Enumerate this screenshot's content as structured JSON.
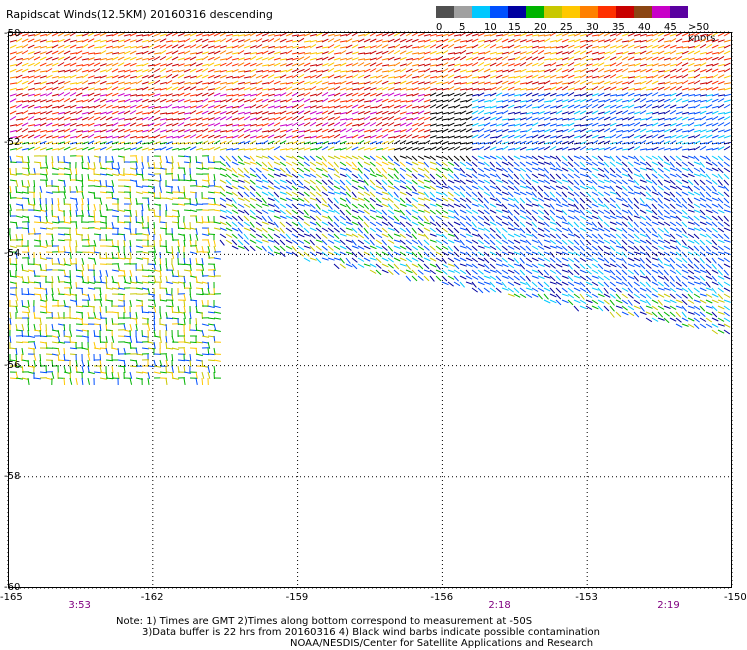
{
  "title": "Rapidscat Winds(12.5KM) 20160316 descending",
  "legend": {
    "labels": [
      "0",
      "5",
      "10",
      "15",
      "20",
      "25",
      "30",
      "35",
      "40",
      "45",
      ">50 knots"
    ],
    "colors": [
      "#505050",
      "#a0a0a0",
      "#00c8ff",
      "#0050ff",
      "#0000a0",
      "#00b400",
      "#c8c800",
      "#ffc800",
      "#ff8000",
      "#ff3000",
      "#c80000",
      "#8b4513",
      "#c800c8",
      "#5a00a0"
    ]
  },
  "map": {
    "lat_labels": [
      "-50",
      "-52",
      "-54",
      "-56",
      "-58",
      "-60"
    ],
    "lon_labels": [
      "-165",
      "-162",
      "-159",
      "-156",
      "-153",
      "-150"
    ],
    "time_labels": [
      {
        "text": "3:53",
        "lon": -163.5
      },
      {
        "text": "2:18",
        "lon": -154.8
      },
      {
        "text": "2:19",
        "lon": -151.3
      }
    ]
  },
  "notes": [
    "Note: 1) Times are GMT 2)Times along bottom correspond to measurement at -50S",
    "3)Data buffer is 22 hrs from 20160316 4) Black wind barbs indicate possible contamination",
    "NOAA/NESDIS/Center for Satellite Applications and Research"
  ]
}
